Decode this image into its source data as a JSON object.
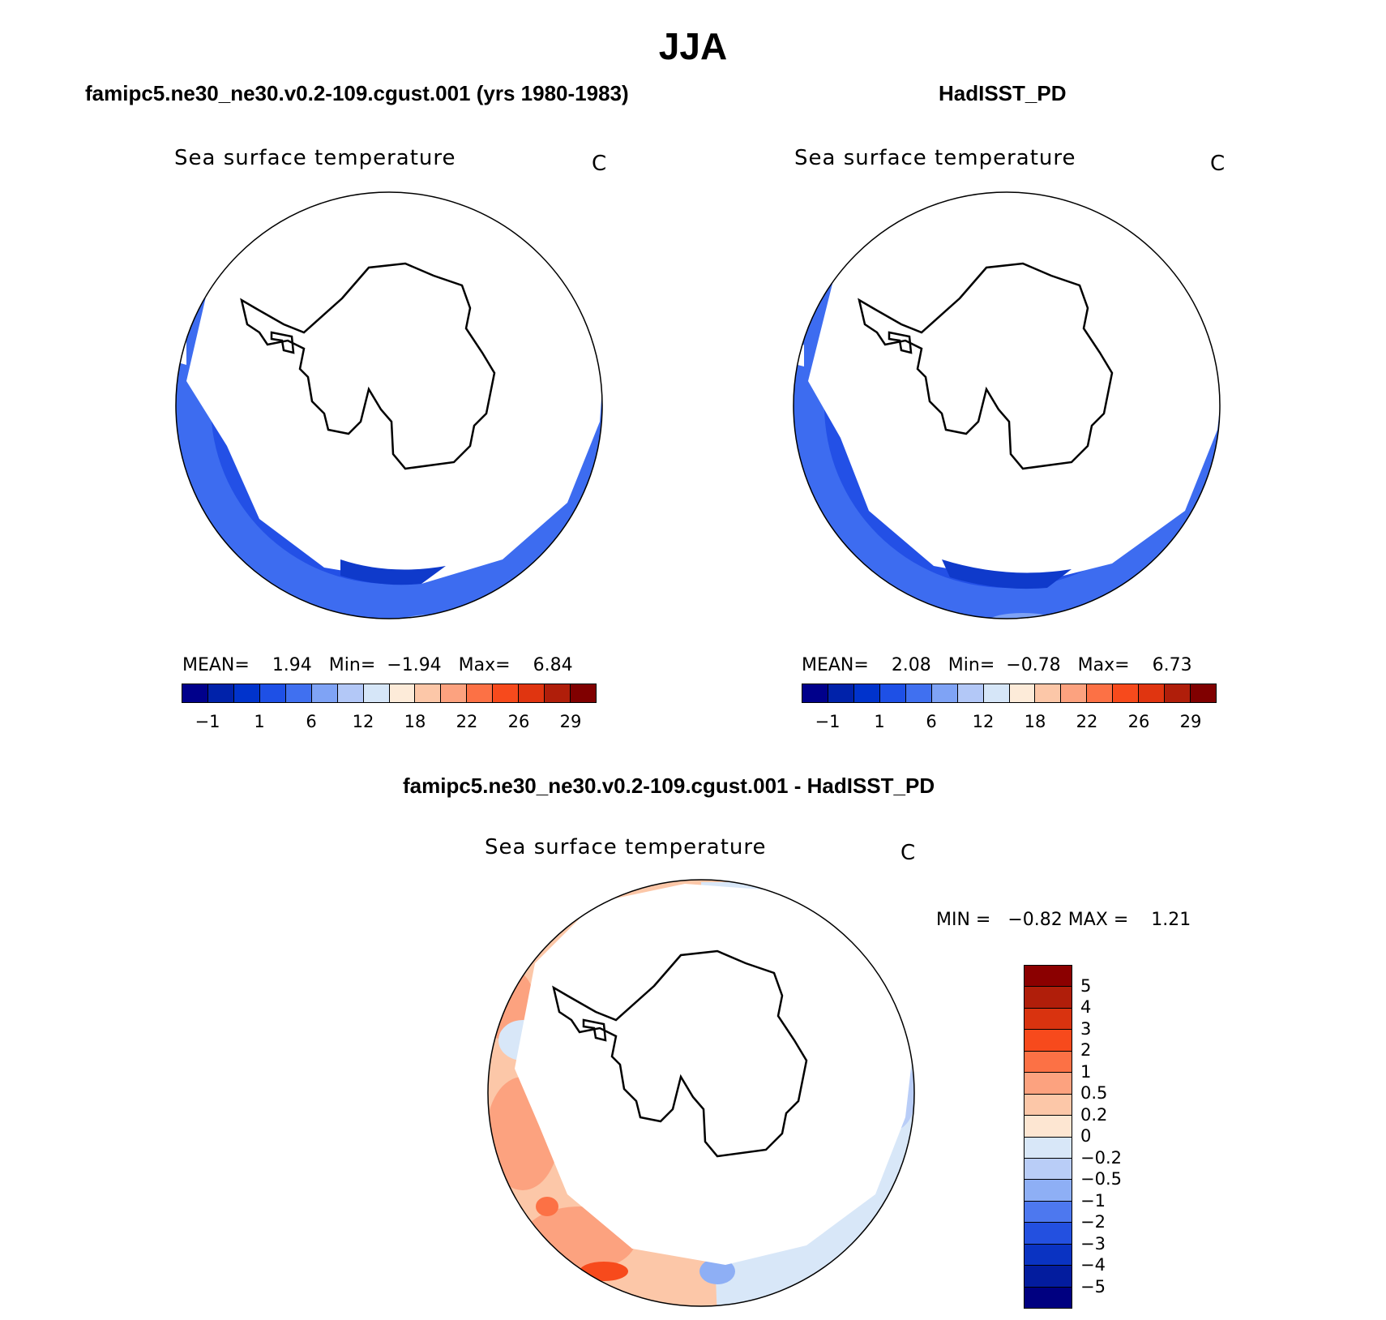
{
  "chart_data": [
    {
      "type": "heatmap",
      "title": "JJA",
      "subtitle": "famipc5.ne30_ne30.v0.2-109.cgust.001 (yrs 1980-1983)",
      "variable": "Sea surface temperature",
      "units": "C",
      "projection": "south polar stereographic",
      "stats": {
        "mean_label": "MEAN=",
        "mean": "1.94",
        "min_label": "Min=",
        "min": "−1.94",
        "max_label": "Max=",
        "max": "6.84"
      },
      "colorbar_ticks": [
        "−1",
        "1",
        "6",
        "12",
        "18",
        "22",
        "26",
        "29"
      ],
      "colorbar_colors": [
        "#00008b",
        "#0022aa",
        "#0033cc",
        "#1e50e6",
        "#4070f0",
        "#7fa3f5",
        "#b3c8f7",
        "#d6e6f8",
        "#fdebd9",
        "#fcc7a8",
        "#fca27f",
        "#fc7145",
        "#f74a1c",
        "#e03510",
        "#b01e0a",
        "#800000"
      ]
    },
    {
      "type": "heatmap",
      "subtitle": "HadISST_PD",
      "variable": "Sea surface temperature",
      "units": "C",
      "projection": "south polar stereographic",
      "stats": {
        "mean_label": "MEAN=",
        "mean": "2.08",
        "min_label": "Min=",
        "min": "−0.78",
        "max_label": "Max=",
        "max": "6.73"
      },
      "colorbar_ticks": [
        "−1",
        "1",
        "6",
        "12",
        "18",
        "22",
        "26",
        "29"
      ],
      "colorbar_colors": [
        "#00008b",
        "#0022aa",
        "#0033cc",
        "#1e50e6",
        "#4070f0",
        "#7fa3f5",
        "#b3c8f7",
        "#d6e6f8",
        "#fdebd9",
        "#fcc7a8",
        "#fca27f",
        "#fc7145",
        "#f74a1c",
        "#e03510",
        "#b01e0a",
        "#800000"
      ]
    },
    {
      "type": "heatmap",
      "subtitle": "famipc5.ne30_ne30.v0.2-109.cgust.001 - HadISST_PD",
      "variable": "Sea surface temperature",
      "units": "C",
      "projection": "south polar stereographic",
      "stats": {
        "min_label": "MIN =",
        "min": "−0.82",
        "max_label": "MAX =",
        "max": "1.21"
      },
      "colorbar_ticks": [
        "5",
        "4",
        "3",
        "2",
        "1",
        "0.5",
        "0.2",
        "0",
        "−0.2",
        "−0.5",
        "−1",
        "−2",
        "−3",
        "−4",
        "−5"
      ],
      "colorbar_colors": [
        "#8b0000",
        "#b01e0a",
        "#d9330f",
        "#f74a1c",
        "#fc7145",
        "#fca27f",
        "#fcc7a8",
        "#fde6d2",
        "#d8e7f8",
        "#b9cdf7",
        "#8eaff5",
        "#4d78ef",
        "#2350e0",
        "#0a33c2",
        "#031c9e",
        "#000080"
      ]
    }
  ]
}
